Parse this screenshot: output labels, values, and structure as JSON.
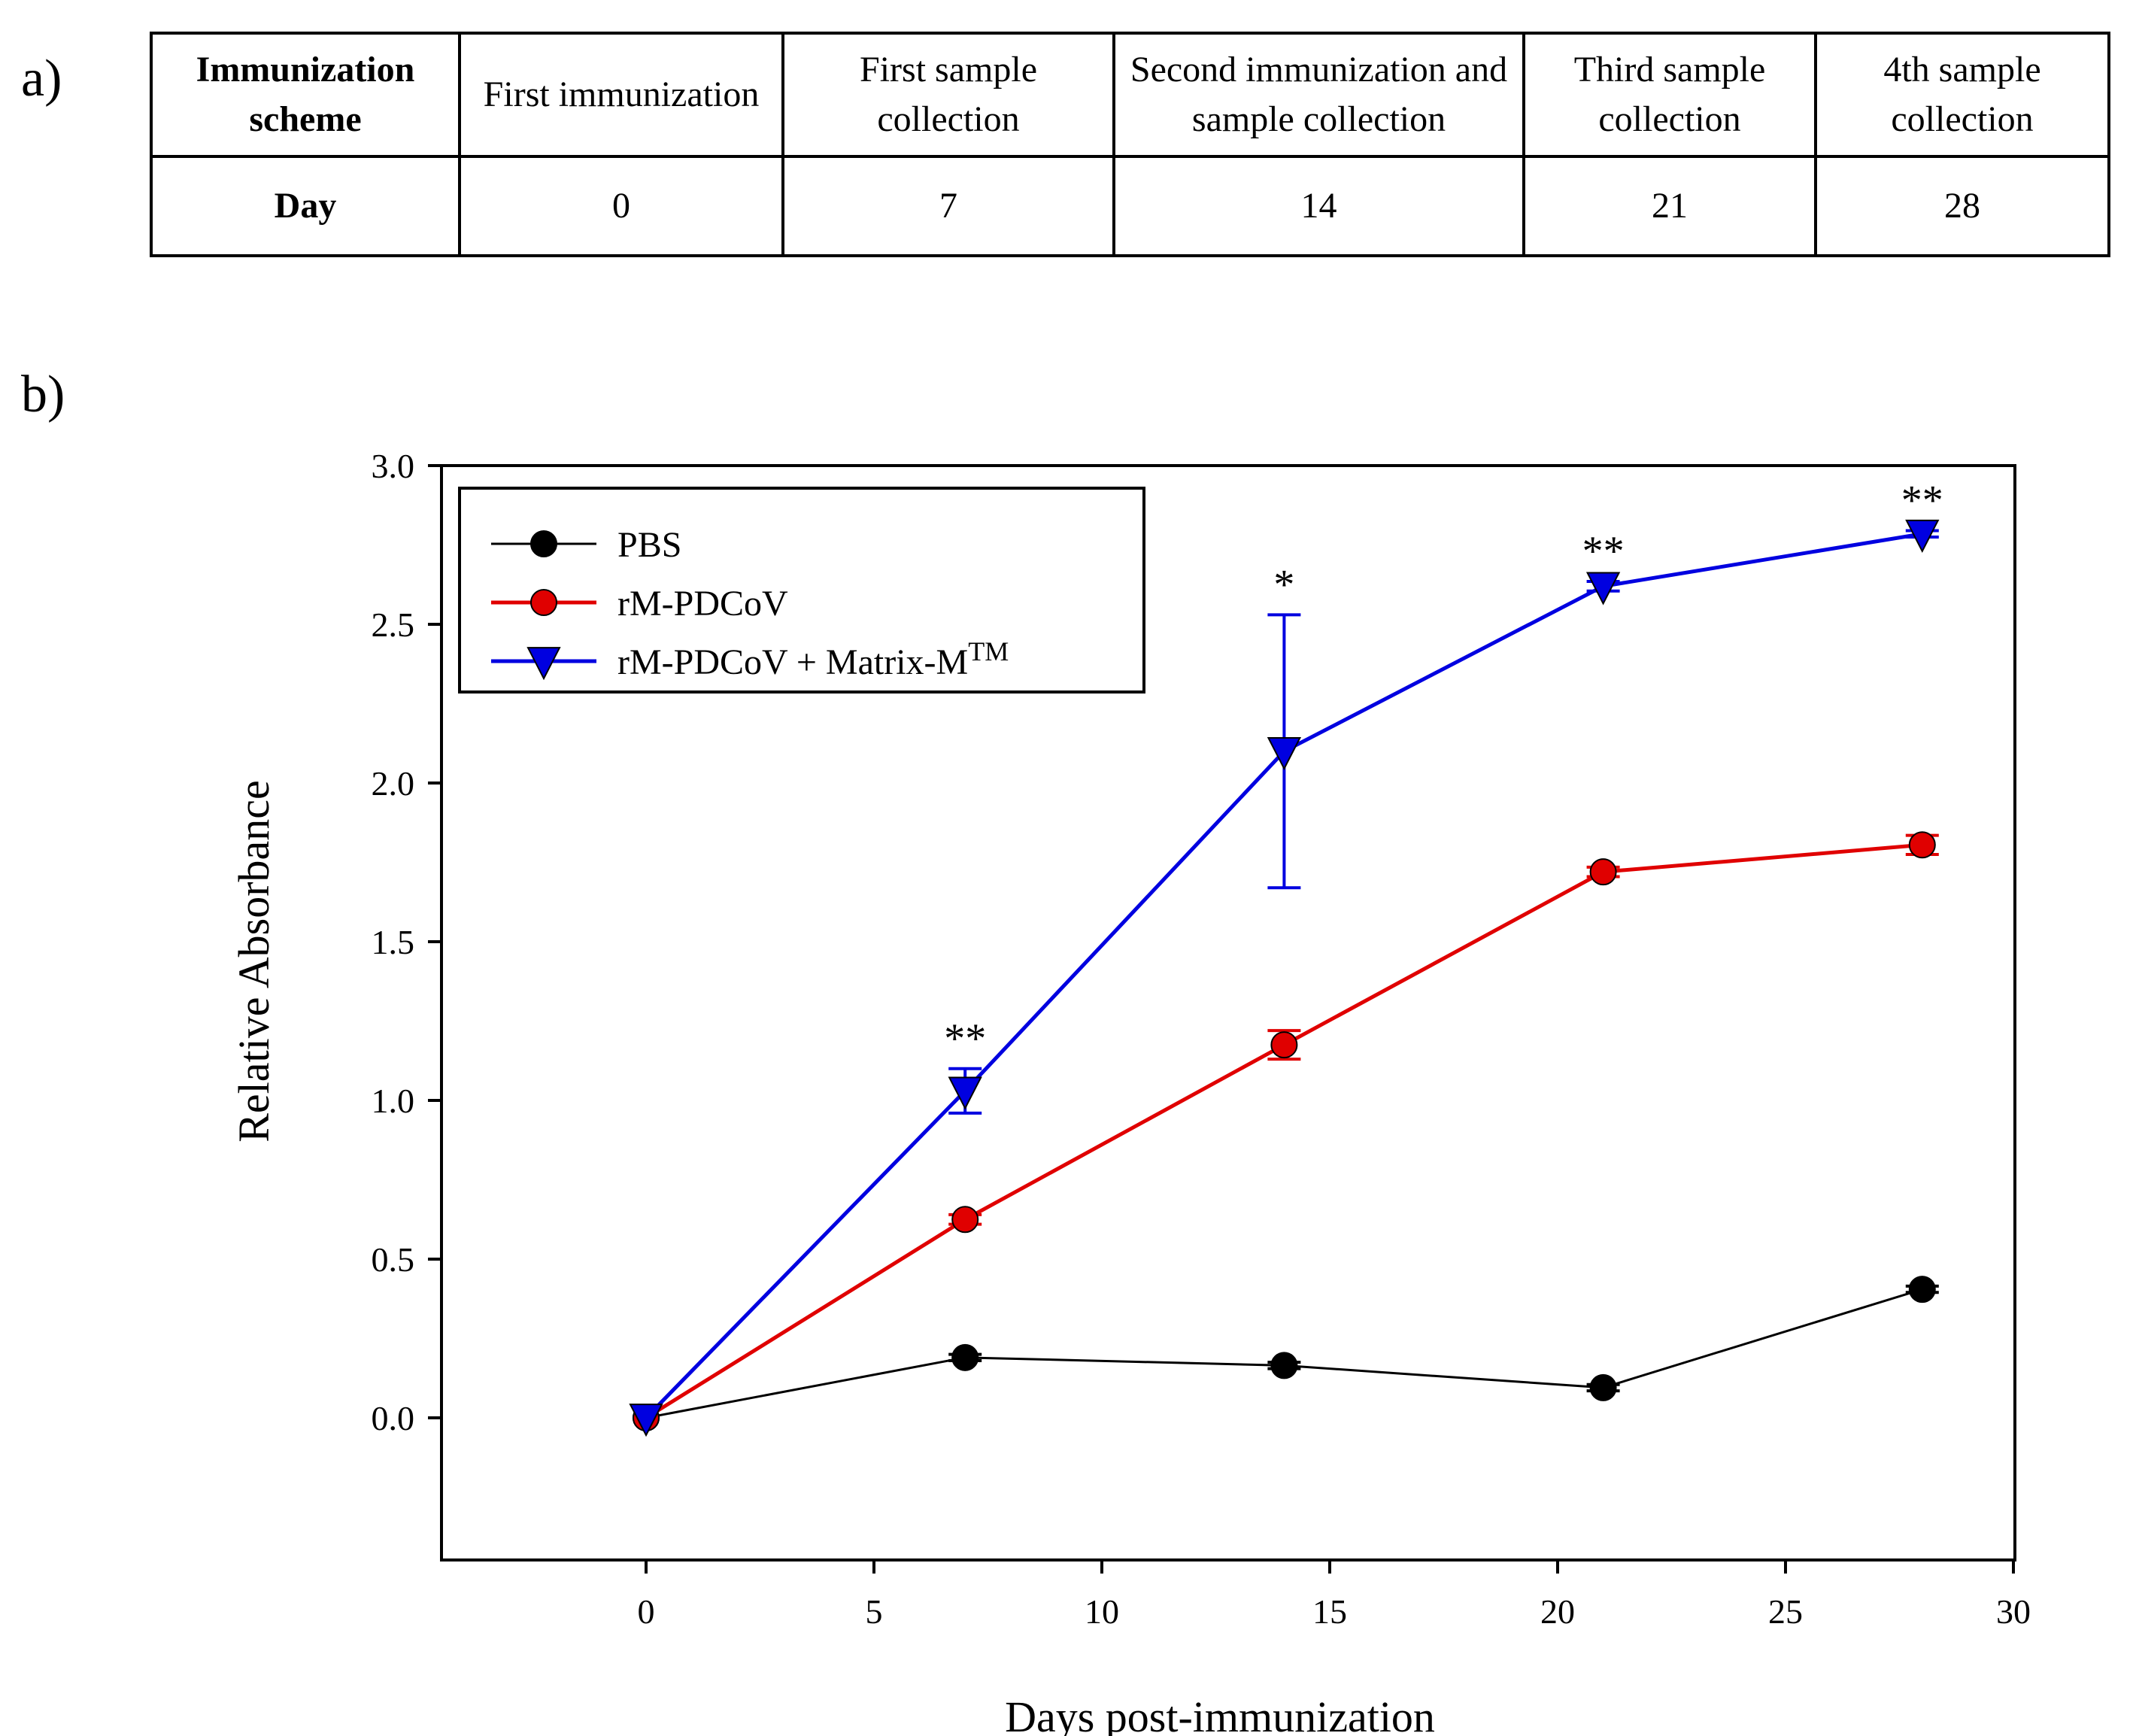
{
  "panel_labels": {
    "a": "a)",
    "b": "b)"
  },
  "scheme_table": {
    "row_headers": {
      "scheme": "Immunization scheme",
      "day": "Day"
    },
    "columns": [
      {
        "event": "First immunization",
        "day": "0"
      },
      {
        "event": "First sample collection",
        "day": "7"
      },
      {
        "event": "Second immunization and sample collection",
        "day": "14"
      },
      {
        "event": "Third sample collection",
        "day": "21"
      },
      {
        "event": "4th sample collection",
        "day": "28"
      }
    ]
  },
  "chart_data": {
    "type": "line",
    "xlabel": "Days post-immunization",
    "ylabel": "Relative Absorbance",
    "xlim": [
      -4.5,
      30
    ],
    "ylim": [
      -0.45,
      3.0
    ],
    "xticks": [
      0,
      5,
      10,
      15,
      20,
      25,
      30
    ],
    "yticks": [
      0.0,
      0.5,
      1.0,
      1.5,
      2.0,
      2.5,
      3.0
    ],
    "ytick_labels": [
      "0.0",
      "0.5",
      "1.0",
      "1.5",
      "2.0",
      "2.5",
      "3.0"
    ],
    "grid": false,
    "legend_position": "top-left",
    "x": [
      0,
      7,
      14,
      21,
      28
    ],
    "series": [
      {
        "name": "PBS",
        "color": "#000000",
        "marker": "circle",
        "values": [
          0.0,
          0.19,
          0.165,
          0.095,
          0.405
        ],
        "errors": [
          0.0,
          0.01,
          0.01,
          0.01,
          0.01
        ]
      },
      {
        "name": "rM-PDCoV",
        "color": "#e00000",
        "marker": "circle",
        "values": [
          0.0,
          0.625,
          1.175,
          1.72,
          1.805
        ],
        "errors": [
          0.0,
          0.015,
          0.045,
          0.015,
          0.03
        ]
      },
      {
        "name": "rM-PDCoV + Matrix-M",
        "name_sup": "TM",
        "color": "#0000e0",
        "marker": "triangle-down",
        "values": [
          0.0,
          1.03,
          2.1,
          2.62,
          2.785
        ],
        "errors": [
          0.0,
          0.07,
          0.43,
          0.015,
          0.01
        ]
      }
    ],
    "annotations": [
      {
        "x": 7,
        "text": "**"
      },
      {
        "x": 14,
        "text": "*"
      },
      {
        "x": 21,
        "text": "**"
      },
      {
        "x": 28,
        "text": "**"
      }
    ]
  }
}
